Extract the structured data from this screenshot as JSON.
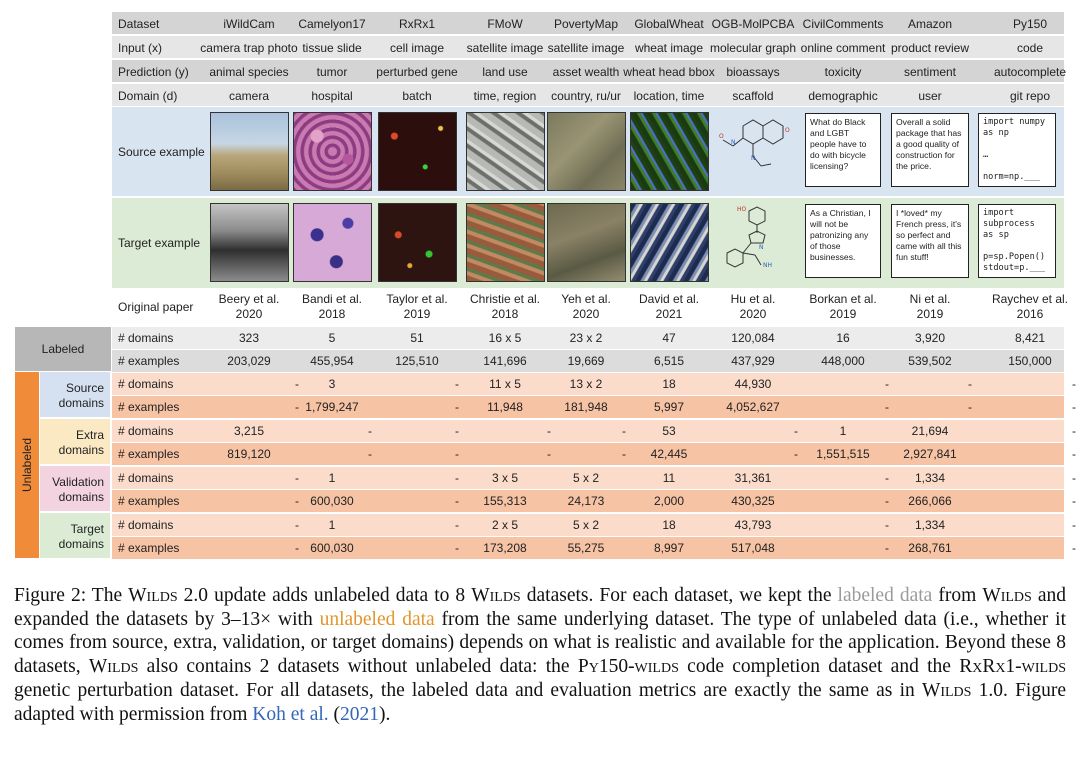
{
  "columns": [
    "iWildCam",
    "Camelyon17",
    "RxRx1",
    "FMoW",
    "PovertyMap",
    "GlobalWheat",
    "OGB-MolPCBA",
    "CivilComments",
    "Amazon",
    "Py150"
  ],
  "header_rows": [
    {
      "label": "Dataset",
      "values": [
        "iWildCam",
        "Camelyon17",
        "RxRx1",
        "FMoW",
        "PovertyMap",
        "GlobalWheat",
        "OGB-MolPCBA",
        "CivilComments",
        "Amazon",
        "Py150"
      ]
    },
    {
      "label": "Input (x)",
      "values": [
        "camera trap photo",
        "tissue slide",
        "cell image",
        "satellite image",
        "satellite image",
        "wheat image",
        "molecular graph",
        "online comment",
        "product review",
        "code"
      ]
    },
    {
      "label": "Prediction (y)",
      "values": [
        "animal species",
        "tumor",
        "perturbed gene",
        "land use",
        "asset wealth",
        "wheat head bbox",
        "bioassays",
        "toxicity",
        "sentiment",
        "autocomplete"
      ]
    },
    {
      "label": "Domain (d)",
      "values": [
        "camera",
        "hospital",
        "batch",
        "time, region",
        "country, ru/ur",
        "location, time",
        "scaffold",
        "demographic",
        "user",
        "git repo"
      ]
    }
  ],
  "source_label": "Source example",
  "target_label": "Target example",
  "source_text": {
    "civil": "What do Black and LGBT people have to do with bicycle licensing?",
    "amazon": "Overall a solid package that has a good quality of construction for the price.",
    "py150": "import numpy\nas np\n\n…\n\nnorm=np.___"
  },
  "target_text": {
    "civil": "As a Christian, I will not be patronizing any of those businesses.",
    "amazon": "I *loved* my French press, it's so perfect and came with all this fun stuff!",
    "py150": "import\nsubprocess\nas sp\n\np=sp.Popen()\nstdout=p.___"
  },
  "paper_label": "Original paper",
  "papers": [
    [
      "Beery et al.",
      "2020"
    ],
    [
      "Bandi et al.",
      "2018"
    ],
    [
      "Taylor et al.",
      "2019"
    ],
    [
      "Christie et al.",
      "2018"
    ],
    [
      "Yeh et al.",
      "2020"
    ],
    [
      "David et al.",
      "2021"
    ],
    [
      "Hu et al.",
      "2020"
    ],
    [
      "Borkan et al.",
      "2019"
    ],
    [
      "Ni et al.",
      "2019"
    ],
    [
      "Raychev et al.",
      "2016"
    ]
  ],
  "groups": [
    {
      "name": "Labeled",
      "rows": [
        {
          "label": "# domains",
          "values": [
            "323",
            "5",
            "51",
            "16 x 5",
            "23 x 2",
            "47",
            "120,084",
            "16",
            "3,920",
            "8,421"
          ]
        },
        {
          "label": "# examples",
          "values": [
            "203,029",
            "455,954",
            "125,510",
            "141,696",
            "19,669",
            "6,515",
            "437,929",
            "448,000",
            "539,502",
            "150,000"
          ]
        }
      ]
    },
    {
      "name": "Source domains",
      "rows": [
        {
          "label": "# domains",
          "values": [
            "-",
            "3",
            "-",
            "11 x 5",
            "13 x 2",
            "18",
            "44,930",
            "-",
            "-",
            "-"
          ]
        },
        {
          "label": "# examples",
          "values": [
            "-",
            "1,799,247",
            "-",
            "11,948",
            "181,948",
            "5,997",
            "4,052,627",
            "-",
            "-",
            "-"
          ]
        }
      ]
    },
    {
      "name": "Extra domains",
      "rows": [
        {
          "label": "# domains",
          "values": [
            "3,215",
            "-",
            "-",
            "-",
            "-",
            "53",
            "-",
            "1",
            "21,694",
            "-"
          ]
        },
        {
          "label": "# examples",
          "values": [
            "819,120",
            "-",
            "-",
            "-",
            "-",
            "42,445",
            "-",
            "1,551,515",
            "2,927,841",
            "-"
          ]
        }
      ]
    },
    {
      "name": "Validation domains",
      "rows": [
        {
          "label": "# domains",
          "values": [
            "-",
            "1",
            "-",
            "3 x 5",
            "5 x 2",
            "11",
            "31,361",
            "-",
            "1,334",
            "-"
          ]
        },
        {
          "label": "# examples",
          "values": [
            "-",
            "600,030",
            "-",
            "155,313",
            "24,173",
            "2,000",
            "430,325",
            "-",
            "266,066",
            "-"
          ]
        }
      ]
    },
    {
      "name": "Target domains",
      "rows": [
        {
          "label": "# domains",
          "values": [
            "-",
            "1",
            "-",
            "2 x 5",
            "5 x 2",
            "18",
            "43,793",
            "-",
            "1,334",
            "-"
          ]
        },
        {
          "label": "# examples",
          "values": [
            "-",
            "600,030",
            "-",
            "173,208",
            "55,275",
            "8,997",
            "517,048",
            "-",
            "268,761",
            "-"
          ]
        }
      ]
    }
  ],
  "side_labels": {
    "labeled": "Labeled",
    "unlabeled": "Unlabeled",
    "source": [
      "Source",
      "domains"
    ],
    "extra": [
      "Extra",
      "domains"
    ],
    "validation": [
      "Validation",
      "domains"
    ],
    "target": [
      "Target",
      "domains"
    ]
  },
  "caption": {
    "p1": "Figure 2: The ",
    "wilds": "Wilds",
    "p2": " 2.0 update adds unlabeled data to 8 ",
    "p3": " datasets. For each dataset, we kept the ",
    "labeled_data": "labeled data",
    "p4": " from ",
    "p5": " and expanded the datasets by 3–13× with ",
    "unlabeled_data": "unlabeled data",
    "p6": " from the same underlying dataset. The type of unlabeled data (i.e., whether it comes from source, extra, validation, or target domains) depends on what is realistic and available for the application. Beyond these 8 datasets, ",
    "p7": " also contains 2 datasets without unlabeled data: the ",
    "py150": "Py150-wilds",
    "p8": " code completion dataset and the ",
    "rxrx1": "RxRx1-wilds",
    "p9": " genetic perturbation dataset. For all datasets, the labeled data and evaluation metrics are exactly the same as in ",
    "p10": " 1.0. Figure adapted with permission from ",
    "koh": "Koh et al.",
    "p11": " (",
    "year": "2021",
    "p12": ")."
  },
  "colors": {
    "header_gray": "#d4d4d4",
    "source_blue": "#d9e4f1",
    "target_green": "#dcebd5",
    "labeled_gray": "#b7b7b7",
    "labeled_row_light": "#ececec",
    "labeled_row_dark": "#dcdcdc",
    "unlabeled_orange": "#f08b3a",
    "row_light_orange": "#fbdccb",
    "row_dark_orange": "#f6c3a4",
    "source_side": "#d5e1f0",
    "extra_side": "#fbe9c4",
    "validation_side": "#f3d3e0",
    "target_side": "#dcecd4"
  }
}
